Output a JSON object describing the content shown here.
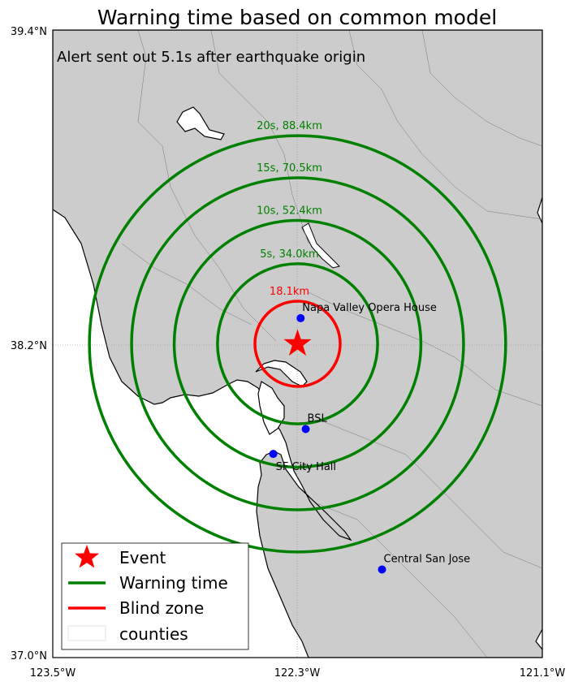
{
  "title": "Warning time based on common model",
  "subtitle": "Alert sent out 5.1s after earthquake origin",
  "axes": {
    "lat_ticks": [
      {
        "label": "39.4°N",
        "value": 39.4
      },
      {
        "label": "38.2°N",
        "value": 38.2
      },
      {
        "label": "37.0°N",
        "value": 37.0
      }
    ],
    "lon_ticks": [
      {
        "label": "123.5°W",
        "value": -123.5
      },
      {
        "label": "122.3°W",
        "value": -122.3
      },
      {
        "label": "121.1°W",
        "value": -121.1
      }
    ]
  },
  "event": {
    "lon": -122.3,
    "lat": 38.2,
    "color": "#ff0000"
  },
  "rings": [
    {
      "label": "20s, 88.4km",
      "radius_km": 88.4,
      "color": "#008000"
    },
    {
      "label": "15s, 70.5km",
      "radius_km": 70.5,
      "color": "#008000"
    },
    {
      "label": "10s, 52.4km",
      "radius_km": 52.4,
      "color": "#008000"
    },
    {
      "label": "5s, 34.0km",
      "radius_km": 34.0,
      "color": "#008000"
    },
    {
      "label": "18.1km",
      "radius_km": 18.1,
      "color": "#ff0000"
    }
  ],
  "places": [
    {
      "name": "Napa Valley Opera House",
      "lon": -122.285,
      "lat": 38.298
    },
    {
      "name": "BSL",
      "lon": -122.26,
      "lat": 37.874
    },
    {
      "name": "SF City Hall",
      "lon": -122.419,
      "lat": 37.779
    },
    {
      "name": "Central San Jose",
      "lon": -121.886,
      "lat": 37.337
    }
  ],
  "place_color": "#0000ff",
  "legend": {
    "event": "Event",
    "warning": "Warning time",
    "blind": "Blind zone",
    "counties": "counties"
  },
  "colors": {
    "land": "#cccccc",
    "water": "#ffffff",
    "warning": "#008000",
    "blind": "#ff0000"
  }
}
